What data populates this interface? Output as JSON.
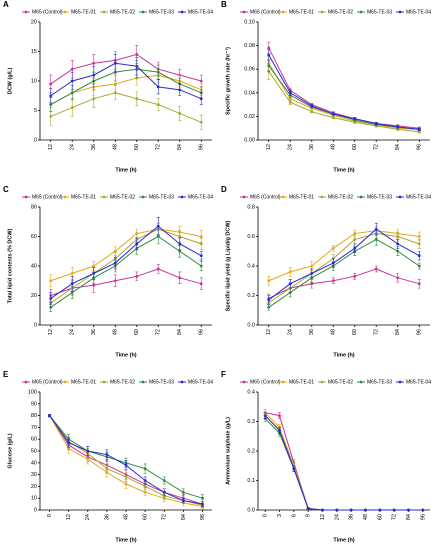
{
  "chart_data": [
    {
      "type": "line",
      "panel_label": "A",
      "ylabel": "DCW (g/L)",
      "xlabel": "Time (h)",
      "categories": [
        "12",
        "24",
        "36",
        "48",
        "60",
        "72",
        "84",
        "96"
      ],
      "ylim": [
        0,
        20
      ],
      "yticks": [
        0,
        5,
        10,
        15,
        20
      ],
      "series": [
        {
          "name": "M65 (Control)",
          "color": "#cc3399",
          "values": [
            9.5,
            12,
            13,
            13.5,
            14.5,
            12,
            11,
            10
          ],
          "errors": [
            1.5,
            1.5,
            1.5,
            1.5,
            1.5,
            1.2,
            1,
            1
          ]
        },
        {
          "name": "M65-TE-01",
          "color": "#e6a817",
          "values": [
            6,
            8,
            9,
            9.5,
            10.5,
            11,
            10,
            8.5
          ],
          "errors": [
            1.2,
            1.2,
            1.5,
            1.5,
            1.2,
            1.2,
            1,
            1
          ]
        },
        {
          "name": "M65-TE-02",
          "color": "#a8a832",
          "values": [
            4,
            5.5,
            7,
            8,
            7,
            6,
            4.5,
            3
          ],
          "errors": [
            1.5,
            1.5,
            1.5,
            1.2,
            1.2,
            1,
            1.2,
            1.2
          ]
        },
        {
          "name": "M65-TE-03",
          "color": "#2e8b3e",
          "values": [
            6,
            8,
            10,
            11.5,
            12,
            11.5,
            9.5,
            8
          ],
          "errors": [
            1.2,
            1.2,
            1.5,
            1.5,
            1.5,
            1.2,
            1,
            1
          ]
        },
        {
          "name": "M65-TE-04",
          "color": "#2a2ad4",
          "values": [
            7.5,
            10,
            11,
            13,
            12.5,
            9,
            8.5,
            7
          ],
          "errors": [
            1.2,
            1.5,
            1.5,
            1.5,
            1.5,
            1.2,
            1,
            1
          ]
        }
      ]
    },
    {
      "type": "line",
      "panel_label": "B",
      "ylabel": "Specific growth rate (hr⁻¹)",
      "xlabel": "Time (h)",
      "categories": [
        "12",
        "24",
        "36",
        "48",
        "60",
        "72",
        "84",
        "96"
      ],
      "ylim": [
        0,
        0.1
      ],
      "yticks": [
        {
          "value": 0,
          "label": "0.00"
        },
        0.02,
        0.04,
        0.06,
        0.08,
        {
          "value": 0.1,
          "label": "0.10"
        }
      ],
      "series": [
        {
          "name": "M65 (Control)",
          "color": "#cc3399",
          "values": [
            0.078,
            0.042,
            0.03,
            0.023,
            0.018,
            0.014,
            0.012,
            0.01
          ],
          "errors": [
            0.005,
            0.002,
            0.001,
            0.001,
            0.001,
            0.001,
            0.001,
            0.001
          ]
        },
        {
          "name": "M65-TE-01",
          "color": "#e6a817",
          "values": [
            0.065,
            0.035,
            0.027,
            0.021,
            0.016,
            0.013,
            0.01,
            0.009
          ],
          "errors": [
            0.006,
            0.002,
            0.001,
            0.001,
            0.001,
            0.001,
            0.001,
            0.001
          ]
        },
        {
          "name": "M65-TE-02",
          "color": "#a8a832",
          "values": [
            0.058,
            0.032,
            0.024,
            0.019,
            0.015,
            0.012,
            0.009,
            0.007
          ],
          "errors": [
            0.007,
            0.002,
            0.001,
            0.001,
            0.001,
            0.001,
            0.001,
            0.001
          ]
        },
        {
          "name": "M65-TE-03",
          "color": "#2e8b3e",
          "values": [
            0.063,
            0.038,
            0.028,
            0.022,
            0.017,
            0.013,
            0.011,
            0.009
          ],
          "errors": [
            0.005,
            0.002,
            0.001,
            0.001,
            0.001,
            0.001,
            0.001,
            0.001
          ]
        },
        {
          "name": "M65-TE-04",
          "color": "#2a2ad4",
          "values": [
            0.072,
            0.04,
            0.029,
            0.022,
            0.018,
            0.014,
            0.011,
            0.009
          ],
          "errors": [
            0.005,
            0.002,
            0.001,
            0.001,
            0.001,
            0.001,
            0.001,
            0.001
          ]
        }
      ]
    },
    {
      "type": "line",
      "panel_label": "C",
      "ylabel": "Total lipid contents (% DCW)",
      "xlabel": "Time (h)",
      "categories": [
        "12",
        "24",
        "36",
        "48",
        "60",
        "72",
        "84",
        "96"
      ],
      "ylim": [
        0,
        80
      ],
      "yticks": [
        0,
        20,
        40,
        60,
        80
      ],
      "series": [
        {
          "name": "M65 (Control)",
          "color": "#cc3399",
          "values": [
            20,
            25,
            27,
            30,
            33,
            38,
            32,
            28
          ],
          "errors": [
            4,
            5,
            5,
            4,
            3,
            3,
            4,
            4
          ]
        },
        {
          "name": "M65-TE-01",
          "color": "#e6a817",
          "values": [
            30,
            35,
            40,
            50,
            62,
            65,
            63,
            60
          ],
          "errors": [
            4,
            4,
            3,
            3,
            3,
            4,
            4,
            4
          ]
        },
        {
          "name": "M65-TE-02",
          "color": "#a8a832",
          "values": [
            15,
            25,
            35,
            45,
            58,
            65,
            60,
            55
          ],
          "errors": [
            3,
            4,
            4,
            4,
            4,
            4,
            4,
            4
          ]
        },
        {
          "name": "M65-TE-03",
          "color": "#2e8b3e",
          "values": [
            12,
            22,
            32,
            40,
            52,
            60,
            50,
            40
          ],
          "errors": [
            3,
            4,
            4,
            4,
            4,
            5,
            4,
            3
          ]
        },
        {
          "name": "M65-TE-04",
          "color": "#2a2ad4",
          "values": [
            18,
            28,
            35,
            42,
            55,
            67,
            55,
            47
          ],
          "errors": [
            4,
            5,
            4,
            4,
            4,
            6,
            4,
            3
          ]
        }
      ]
    },
    {
      "type": "line",
      "panel_label": "D",
      "ylabel": "Specific lipid yield (g Lipid/g DCW)",
      "xlabel": "Time (h)",
      "categories": [
        "12",
        "24",
        "36",
        "48",
        "60",
        "72",
        "84",
        "96"
      ],
      "ylim": [
        0,
        0.8
      ],
      "yticks": [
        {
          "value": 0,
          "label": "0.0"
        },
        0.2,
        0.4,
        0.6,
        0.8
      ],
      "series": [
        {
          "name": "M65 (Control)",
          "color": "#cc3399",
          "values": [
            0.18,
            0.25,
            0.28,
            0.3,
            0.33,
            0.38,
            0.32,
            0.28
          ],
          "errors": [
            0.03,
            0.03,
            0.03,
            0.02,
            0.02,
            0.02,
            0.03,
            0.03
          ]
        },
        {
          "name": "M65-TE-01",
          "color": "#e6a817",
          "values": [
            0.3,
            0.36,
            0.4,
            0.52,
            0.62,
            0.64,
            0.62,
            0.6
          ],
          "errors": [
            0.03,
            0.03,
            0.03,
            0.02,
            0.02,
            0.03,
            0.03,
            0.03
          ]
        },
        {
          "name": "M65-TE-02",
          "color": "#a8a832",
          "values": [
            0.15,
            0.25,
            0.35,
            0.45,
            0.58,
            0.62,
            0.6,
            0.55
          ],
          "errors": [
            0.03,
            0.03,
            0.03,
            0.03,
            0.03,
            0.03,
            0.03,
            0.03
          ]
        },
        {
          "name": "M65-TE-03",
          "color": "#2e8b3e",
          "values": [
            0.12,
            0.22,
            0.32,
            0.4,
            0.5,
            0.58,
            0.5,
            0.4
          ],
          "errors": [
            0.02,
            0.03,
            0.03,
            0.03,
            0.03,
            0.04,
            0.03,
            0.02
          ]
        },
        {
          "name": "M65-TE-04",
          "color": "#2a2ad4",
          "values": [
            0.17,
            0.28,
            0.35,
            0.42,
            0.52,
            0.65,
            0.55,
            0.47
          ],
          "errors": [
            0.03,
            0.03,
            0.03,
            0.03,
            0.03,
            0.04,
            0.03,
            0.03
          ]
        }
      ]
    },
    {
      "type": "line",
      "panel_label": "E",
      "ylabel": "Glucose (g/L)",
      "xlabel": "Time (h)",
      "categories": [
        "0",
        "12",
        "24",
        "36",
        "48",
        "60",
        "72",
        "84",
        "96"
      ],
      "ylim": [
        0,
        100
      ],
      "yticks": [
        0,
        10,
        20,
        30,
        40,
        50,
        60,
        70,
        80,
        90,
        100
      ],
      "series": [
        {
          "name": "M65 (Control)",
          "color": "#cc3399",
          "values": [
            80,
            55,
            45,
            38,
            30,
            22,
            15,
            10,
            5
          ],
          "errors": [
            1,
            4,
            4,
            4,
            4,
            3,
            3,
            3,
            2
          ]
        },
        {
          "name": "M65-TE-01",
          "color": "#e6a817",
          "values": [
            80,
            52,
            43,
            32,
            22,
            15,
            10,
            6,
            3
          ],
          "errors": [
            1,
            4,
            4,
            4,
            4,
            3,
            3,
            2,
            2
          ]
        },
        {
          "name": "M65-TE-02",
          "color": "#a8a832",
          "values": [
            80,
            58,
            48,
            35,
            28,
            20,
            12,
            8,
            4
          ],
          "errors": [
            1,
            4,
            4,
            4,
            4,
            3,
            3,
            2,
            2
          ]
        },
        {
          "name": "M65-TE-03",
          "color": "#2e8b3e",
          "values": [
            80,
            60,
            50,
            45,
            40,
            35,
            25,
            15,
            10
          ],
          "errors": [
            1,
            4,
            4,
            4,
            4,
            4,
            3,
            3,
            3
          ]
        },
        {
          "name": "M65-TE-04",
          "color": "#2a2ad4",
          "values": [
            80,
            57,
            50,
            47,
            38,
            25,
            15,
            8,
            5
          ],
          "errors": [
            1,
            4,
            4,
            4,
            4,
            3,
            3,
            2,
            2
          ]
        }
      ]
    },
    {
      "type": "line",
      "panel_label": "F",
      "ylabel": "Ammonium sulphate (g/L)",
      "xlabel": "Time (h)",
      "categories": [
        "0",
        "3",
        "6",
        "9",
        "12",
        "24",
        "36",
        "48",
        "60",
        "72",
        "84",
        "96"
      ],
      "ylim": [
        0,
        0.4
      ],
      "yticks": [
        {
          "value": 0,
          "label": "0.0"
        },
        0.1,
        0.2,
        0.3,
        0.4
      ],
      "series": [
        {
          "name": "M65 (Control)",
          "color": "#cc3399",
          "values": [
            0.33,
            0.32,
            0.16,
            0.005,
            0,
            0,
            0,
            0,
            0,
            0,
            0,
            0
          ],
          "errors": [
            0.01,
            0.01,
            0.01,
            0.003,
            0,
            0,
            0,
            0,
            0,
            0,
            0,
            0
          ]
        },
        {
          "name": "M65-TE-01",
          "color": "#e6a817",
          "values": [
            0.33,
            0.28,
            0.15,
            0.005,
            0,
            0,
            0,
            0,
            0,
            0,
            0,
            0
          ],
          "errors": [
            0.01,
            0.01,
            0.01,
            0.003,
            0,
            0,
            0,
            0,
            0,
            0,
            0,
            0
          ]
        },
        {
          "name": "M65-TE-02",
          "color": "#a8a832",
          "values": [
            0.32,
            0.27,
            0.15,
            0.005,
            0,
            0,
            0,
            0,
            0,
            0,
            0,
            0
          ],
          "errors": [
            0.01,
            0.01,
            0.01,
            0.003,
            0,
            0,
            0,
            0,
            0,
            0,
            0,
            0
          ]
        },
        {
          "name": "M65-TE-03",
          "color": "#2e8b3e",
          "values": [
            0.31,
            0.26,
            0.14,
            0.005,
            0,
            0,
            0,
            0,
            0,
            0,
            0,
            0
          ],
          "errors": [
            0.01,
            0.01,
            0.01,
            0.003,
            0,
            0,
            0,
            0,
            0,
            0,
            0,
            0
          ]
        },
        {
          "name": "M65-TE-04",
          "color": "#2a2ad4",
          "values": [
            0.32,
            0.27,
            0.14,
            0.005,
            0,
            0,
            0,
            0,
            0,
            0,
            0,
            0
          ],
          "errors": [
            0.01,
            0.01,
            0.01,
            0.003,
            0,
            0,
            0,
            0,
            0,
            0,
            0,
            0
          ]
        }
      ]
    }
  ]
}
